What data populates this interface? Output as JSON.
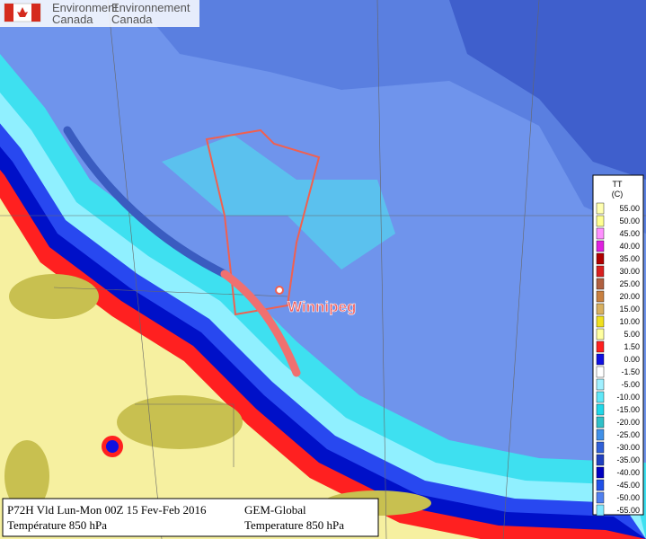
{
  "header": {
    "english": [
      "Environment",
      "Canada"
    ],
    "french": [
      "Environnement",
      "Canada"
    ]
  },
  "legend": {
    "title": "TT",
    "unit": "(C)",
    "items": [
      {
        "label": "55.00",
        "color": "#ffffb0"
      },
      {
        "label": "50.00",
        "color": "#ffff90"
      },
      {
        "label": "45.00",
        "color": "#ff90ff"
      },
      {
        "label": "40.00",
        "color": "#e020e0"
      },
      {
        "label": "35.00",
        "color": "#b00000"
      },
      {
        "label": "30.00",
        "color": "#d82020"
      },
      {
        "label": "25.00",
        "color": "#b06040"
      },
      {
        "label": "20.00",
        "color": "#c88040"
      },
      {
        "label": "15.00",
        "color": "#d8b060"
      },
      {
        "label": "10.00",
        "color": "#f0e020"
      },
      {
        "label": "5.00",
        "color": "#ffffa0"
      },
      {
        "label": "1.50",
        "color": "#ff2020"
      },
      {
        "label": "0.00",
        "color": "#1010e0"
      },
      {
        "label": "-1.50",
        "color": "#ffffff"
      },
      {
        "label": "-5.00",
        "color": "#a0f0ff"
      },
      {
        "label": "-10.00",
        "color": "#60e8f8"
      },
      {
        "label": "-15.00",
        "color": "#20d8e8"
      },
      {
        "label": "-20.00",
        "color": "#30c0c8"
      },
      {
        "label": "-25.00",
        "color": "#4090e8"
      },
      {
        "label": "-30.00",
        "color": "#3060d8"
      },
      {
        "label": "-35.00",
        "color": "#2040c0"
      },
      {
        "label": "-40.00",
        "color": "#0000c0"
      },
      {
        "label": "-45.00",
        "color": "#2050e8"
      },
      {
        "label": "-50.00",
        "color": "#5080f0"
      },
      {
        "label": "-55.00",
        "color": "#80e8ff"
      }
    ]
  },
  "city": "Winnipeg",
  "info": {
    "left": [
      "P72H Vld Lun-Mon 00Z 15 Fev-Feb 2016",
      "Température 850 hPa"
    ],
    "right": [
      "GEM-Global",
      "Temperature 850 hPa"
    ]
  }
}
